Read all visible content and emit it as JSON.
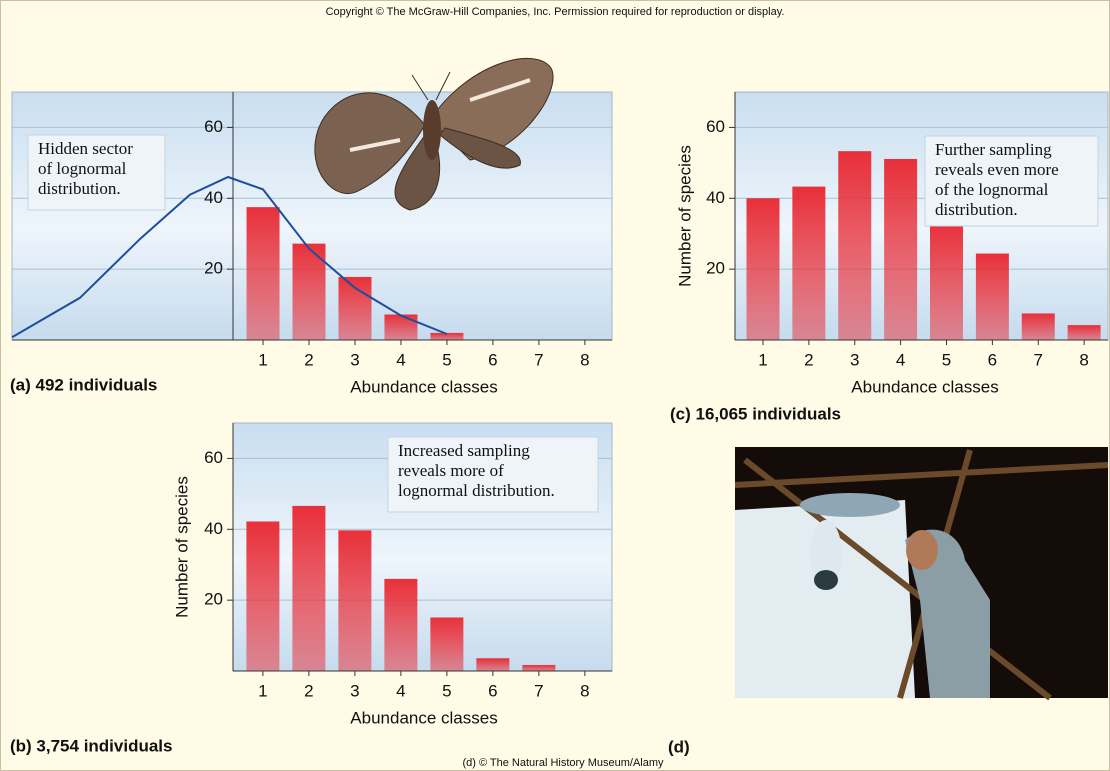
{
  "header": {
    "copyright": "Copyright © The McGraw-Hill Companies, Inc. Permission required for reproduction or display."
  },
  "chart_data": [
    {
      "type": "bar",
      "caption": "(a) 492 individuals",
      "x_label": "Abundance classes",
      "annotation": [
        "Hidden sector",
        "of lognormal",
        "distribution."
      ],
      "x": [
        1,
        2,
        3,
        4,
        5,
        6,
        7,
        8
      ],
      "values": [
        37.5,
        27.2,
        17.8,
        7.2,
        2,
        0,
        0,
        0
      ],
      "color": "#e8303a",
      "curve": {
        "x": [
          -4.46,
          -2.98,
          -1.67,
          -0.59,
          0.24,
          1,
          2,
          3,
          4,
          5
        ],
        "values": [
          0.8,
          11.9,
          28.6,
          41,
          46,
          42.5,
          25.8,
          14.7,
          6.9,
          1.7
        ],
        "color": "#1f4e9c"
      },
      "xlim": [
        -4.46,
        8.59
      ],
      "ylim": [
        0,
        70
      ],
      "xticks": [
        1,
        2,
        3,
        4,
        5,
        6,
        7,
        8
      ],
      "yticks": [
        20,
        40,
        60
      ],
      "grid": true
    },
    {
      "type": "bar",
      "caption": "(b) 3,754 individuals",
      "x_label": "Abundance classes",
      "y_label": "Number of species",
      "annotation": [
        "Increased sampling",
        "reveals more of",
        "lognormal distribution."
      ],
      "x": [
        1,
        2,
        3,
        4,
        5,
        6,
        7,
        8
      ],
      "values": [
        42.2,
        46.6,
        39.7,
        26,
        15.1,
        3.6,
        1.7,
        0
      ],
      "color": "#e8303a",
      "xlim": [
        0.35,
        8.59
      ],
      "ylim": [
        0,
        70
      ],
      "xticks": [
        1,
        2,
        3,
        4,
        5,
        6,
        7,
        8
      ],
      "yticks": [
        20,
        40,
        60
      ],
      "grid": true
    },
    {
      "type": "bar",
      "caption": "(c) 16,065 individuals",
      "x_label": "Abundance classes",
      "y_label": "Number of species",
      "annotation": [
        "Further sampling",
        "reveals even more",
        "of the lognormal",
        "distribution."
      ],
      "x": [
        1,
        2,
        3,
        4,
        5,
        6,
        7,
        8
      ],
      "values": [
        40,
        43.3,
        53.3,
        51.1,
        32.8,
        24.4,
        7.5,
        4.2
      ],
      "color": "#e8303a",
      "xlim": [
        0.39,
        8.52
      ],
      "ylim": [
        0,
        70
      ],
      "xticks": [
        1,
        2,
        3,
        4,
        5,
        6,
        7,
        8
      ],
      "yticks": [
        20,
        40,
        60
      ],
      "grid": true
    }
  ],
  "photo": {
    "label": "(d)",
    "credit": "(d) © The Natural History Museum/Alamy"
  }
}
